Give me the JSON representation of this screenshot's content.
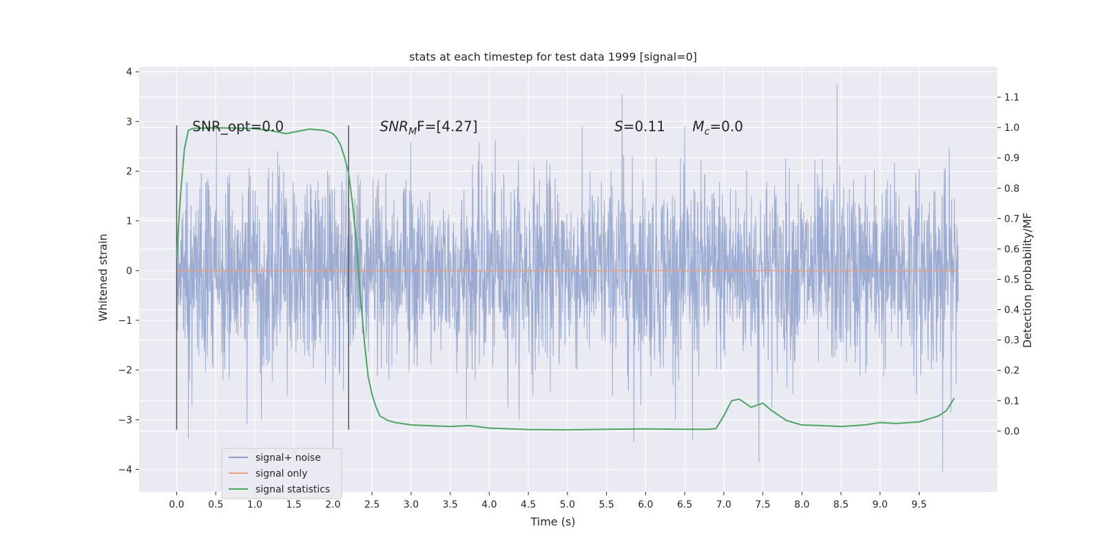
{
  "chart_data": {
    "type": "line",
    "title": "stats at each timestep for test data 1999 [signal=0]",
    "xlabel": "Time (s)",
    "ylabel": "Whitened strain",
    "y2label": "Detection probability/MF",
    "xlim": [
      -0.48,
      10.5
    ],
    "ylim": [
      -4.45,
      4.1
    ],
    "y2lim": [
      -0.2,
      1.2
    ],
    "xticks": [
      "0.0",
      "0.5",
      "1.0",
      "1.5",
      "2.0",
      "2.5",
      "3.0",
      "3.5",
      "4.0",
      "4.5",
      "5.0",
      "5.5",
      "6.0",
      "6.5",
      "7.0",
      "7.5",
      "8.0",
      "8.5",
      "9.0",
      "9.5"
    ],
    "yticks": [
      "4",
      "3",
      "2",
      "1",
      "0",
      "−1",
      "−2",
      "−3",
      "−4"
    ],
    "y2ticks": [
      "1.1",
      "1.0",
      "0.9",
      "0.8",
      "0.7",
      "0.6",
      "0.5",
      "0.4",
      "0.3",
      "0.2",
      "0.1",
      "0.0"
    ],
    "grid": true,
    "legend_position": "lower-left",
    "series": [
      {
        "name": "signal+ noise",
        "color": "#8da0cb",
        "x_range": [
          0.0,
          10.0
        ],
        "typical_range": [
          -1.8,
          1.8
        ],
        "notable_extremes": [
          {
            "x": 0.15,
            "y": -3.38
          },
          {
            "x": 0.9,
            "y": -3.1
          },
          {
            "x": 2.0,
            "y": -3.6
          },
          {
            "x": 5.7,
            "y": 3.55
          },
          {
            "x": 5.85,
            "y": -3.45
          },
          {
            "x": 6.6,
            "y": -3.4
          },
          {
            "x": 7.45,
            "y": -3.85
          },
          {
            "x": 8.45,
            "y": 3.75
          },
          {
            "x": 9.8,
            "y": -4.05
          }
        ]
      },
      {
        "name": "signal only",
        "color": "#e5a084",
        "x": [
          0.0,
          10.0
        ],
        "y": [
          0.0,
          0.0
        ]
      },
      {
        "name": "signal statistics",
        "color": "#4aa560",
        "axis": "right",
        "x": [
          0.0,
          0.05,
          0.1,
          0.15,
          0.2,
          0.3,
          0.5,
          0.8,
          1.0,
          1.2,
          1.4,
          1.5,
          1.7,
          1.9,
          2.0,
          2.05,
          2.1,
          2.15,
          2.2,
          2.25,
          2.3,
          2.35,
          2.4,
          2.45,
          2.5,
          2.55,
          2.6,
          2.7,
          2.8,
          3.0,
          3.5,
          3.75,
          4.0,
          4.5,
          5.0,
          5.5,
          6.0,
          6.5,
          6.8,
          6.9,
          7.0,
          7.1,
          7.2,
          7.35,
          7.5,
          7.6,
          7.8,
          8.0,
          8.25,
          8.5,
          8.8,
          9.0,
          9.2,
          9.5,
          9.75,
          9.85,
          9.95
        ],
        "y": [
          0.57,
          0.78,
          0.93,
          0.99,
          0.997,
          0.998,
          0.999,
          0.998,
          0.996,
          0.99,
          0.98,
          0.985,
          0.995,
          0.99,
          0.98,
          0.965,
          0.94,
          0.9,
          0.85,
          0.75,
          0.62,
          0.45,
          0.3,
          0.18,
          0.12,
          0.08,
          0.05,
          0.035,
          0.028,
          0.02,
          0.015,
          0.018,
          0.01,
          0.005,
          0.004,
          0.006,
          0.007,
          0.006,
          0.006,
          0.008,
          0.05,
          0.1,
          0.105,
          0.078,
          0.092,
          0.07,
          0.035,
          0.02,
          0.018,
          0.015,
          0.02,
          0.028,
          0.025,
          0.03,
          0.05,
          0.068,
          0.108
        ]
      }
    ],
    "vlines": [
      {
        "x": 0.0,
        "y_from": -3.2,
        "y_to": 2.92,
        "color": "#555555"
      },
      {
        "x": 2.2,
        "y_from": -3.2,
        "y_to": 2.92,
        "color": "#555555"
      }
    ],
    "annotations": [
      {
        "id": "snr-opt",
        "text": "SNR_opt=0.0",
        "x": 0.2,
        "y": 2.9
      },
      {
        "id": "snr-mf",
        "prefix": "SNR",
        "sub": "M",
        "suffix": "F=[4.27]",
        "x": 2.6,
        "y": 2.9
      },
      {
        "id": "s-stat",
        "prefix": "S",
        "suffix": "=0.11",
        "x": 5.6,
        "y": 2.9
      },
      {
        "id": "mc",
        "prefix": "M",
        "sub": "c",
        "suffix": "=0.0",
        "x": 6.6,
        "y": 2.9
      }
    ]
  }
}
